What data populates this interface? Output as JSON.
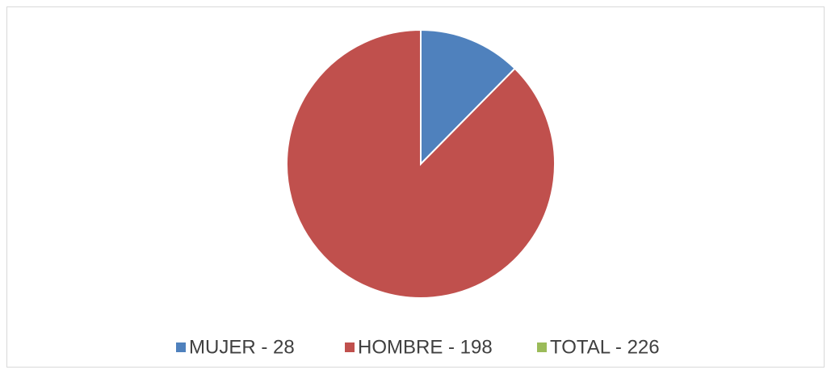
{
  "chart_data": {
    "type": "pie",
    "categories": [
      "MUJER - 28",
      "HOMBRE - 198",
      "TOTAL - 226"
    ],
    "values": [
      28,
      198,
      null
    ],
    "colors": [
      "#4f81bd",
      "#c0504d",
      "#9bbb59"
    ],
    "legend": "bottom"
  }
}
